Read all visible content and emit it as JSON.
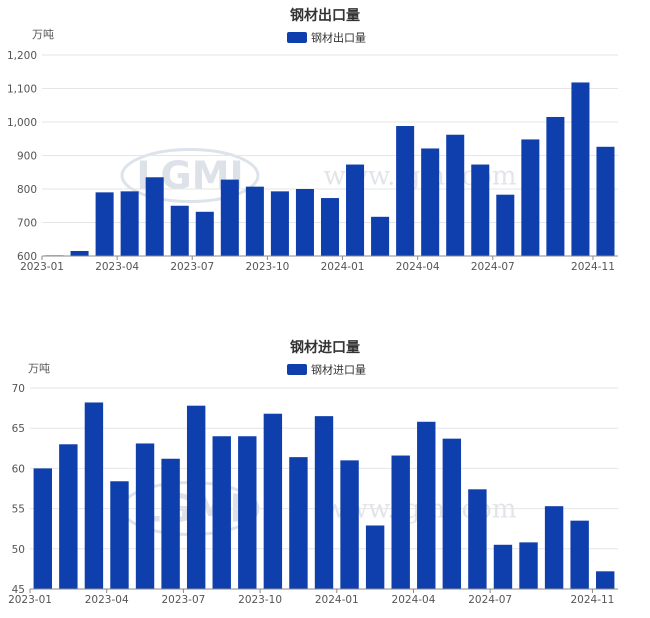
{
  "chart_data": [
    {
      "type": "bar",
      "title": "钢材出口量",
      "unit_label": "万吨",
      "legend": [
        "钢材出口量"
      ],
      "legend_position": "top-center",
      "watermark": {
        "logo": "LGMI",
        "text": "www.lgmi.com"
      },
      "colors": {
        "bar": "#0f3fad"
      },
      "ylim": [
        600,
        1200
      ],
      "yticks": [
        600,
        700,
        800,
        900,
        1000,
        1100,
        1200
      ],
      "ytick_labels": [
        "600",
        "700",
        "800",
        "900",
        "1,000",
        "1,100",
        "1,200"
      ],
      "categories": [
        "2023-01",
        "2023-02",
        "2023-03",
        "2023-04",
        "2023-05",
        "2023-06",
        "2023-07",
        "2023-08",
        "2023-09",
        "2023-10",
        "2023-11",
        "2023-12",
        "2024-01",
        "2024-02",
        "2024-03",
        "2024-04",
        "2024-05",
        "2024-06",
        "2024-07",
        "2024-08",
        "2024-09",
        "2024-10",
        "2024-11"
      ],
      "xtick_labels": [
        "2023-01",
        "2023-04",
        "2023-07",
        "2023-10",
        "2024-01",
        "2024-04",
        "2024-07",
        "2024-11"
      ],
      "xtick_indices": [
        0,
        3,
        6,
        9,
        12,
        15,
        18,
        22
      ],
      "series": [
        {
          "name": "钢材出口量",
          "values": [
            602,
            615,
            790,
            793,
            835,
            750,
            732,
            828,
            807,
            793,
            800,
            773,
            873,
            717,
            988,
            921,
            962,
            873,
            783,
            948,
            1015,
            1118,
            926
          ]
        }
      ]
    },
    {
      "type": "bar",
      "title": "钢材进口量",
      "unit_label": "万吨",
      "legend": [
        "钢材进口量"
      ],
      "legend_position": "top-center",
      "watermark": {
        "logo": "LGMI",
        "text": "www.lgmi.com"
      },
      "colors": {
        "bar": "#0f3fad"
      },
      "ylim": [
        45,
        70
      ],
      "yticks": [
        45,
        50,
        55,
        60,
        65,
        70
      ],
      "ytick_labels": [
        "45",
        "50",
        "55",
        "60",
        "65",
        "70"
      ],
      "categories": [
        "2023-01",
        "2023-02",
        "2023-03",
        "2023-04",
        "2023-05",
        "2023-06",
        "2023-07",
        "2023-08",
        "2023-09",
        "2023-10",
        "2023-11",
        "2023-12",
        "2024-01",
        "2024-02",
        "2024-03",
        "2024-04",
        "2024-05",
        "2024-06",
        "2024-07",
        "2024-08",
        "2024-09",
        "2024-10",
        "2024-11"
      ],
      "xtick_labels": [
        "2023-01",
        "2023-04",
        "2023-07",
        "2023-10",
        "2024-01",
        "2024-04",
        "2024-07",
        "2024-11"
      ],
      "xtick_indices": [
        0,
        3,
        6,
        9,
        12,
        15,
        18,
        22
      ],
      "series": [
        {
          "name": "钢材进口量",
          "values": [
            60.0,
            63.0,
            68.2,
            58.4,
            63.1,
            61.2,
            67.8,
            64.0,
            64.0,
            66.8,
            61.4,
            66.5,
            61.0,
            52.9,
            61.6,
            65.8,
            63.7,
            57.4,
            50.5,
            50.8,
            55.3,
            53.5,
            47.2
          ]
        }
      ]
    }
  ]
}
